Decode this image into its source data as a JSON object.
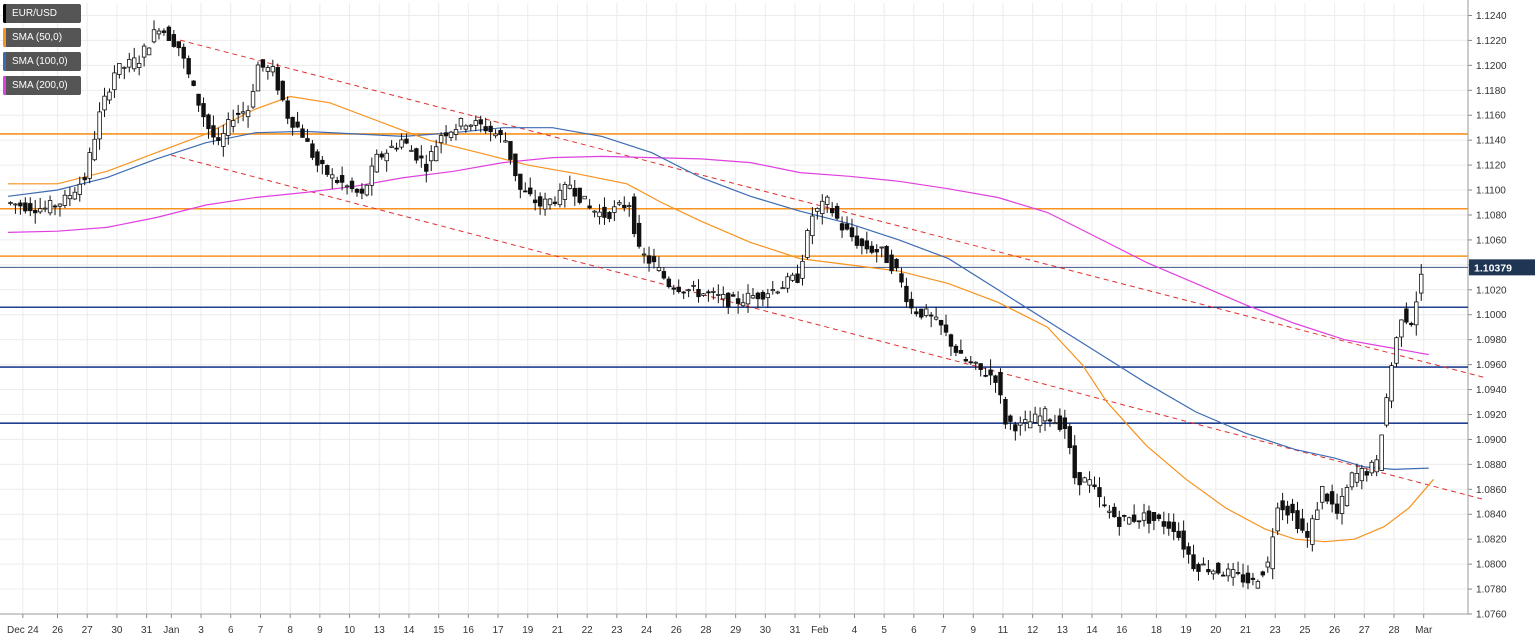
{
  "chart_data": {
    "type": "candlestick",
    "symbol": "EUR/USD",
    "last_price_label": "1.10379",
    "legend": [
      {
        "label": "EUR/USD",
        "color": "#000000"
      },
      {
        "label": "SMA (50,0)",
        "color": "#f7931e"
      },
      {
        "label": "SMA (100,0)",
        "color": "#3d6bb3"
      },
      {
        "label": "SMA (200,0)",
        "color": "#e040e0"
      }
    ],
    "ylim": [
      1.076,
      1.125
    ],
    "y_ticks": [
      "1.1240",
      "1.1220",
      "1.1200",
      "1.1180",
      "1.1160",
      "1.1140",
      "1.1120",
      "1.1100",
      "1.1080",
      "1.1060",
      "1.1040",
      "1.1020",
      "1.1000",
      "1.0980",
      "1.0960",
      "1.0940",
      "1.0920",
      "1.0900",
      "1.0880",
      "1.0860",
      "1.0840",
      "1.0820",
      "1.0800",
      "1.0780",
      "1.0760"
    ],
    "x_ticks": [
      {
        "label": "Dec 24",
        "i": 3
      },
      {
        "label": "26",
        "i": 10
      },
      {
        "label": "27",
        "i": 16
      },
      {
        "label": "30",
        "i": 22
      },
      {
        "label": "31",
        "i": 28
      },
      {
        "label": "Jan",
        "i": 33
      },
      {
        "label": "3",
        "i": 39
      },
      {
        "label": "6",
        "i": 45
      },
      {
        "label": "7",
        "i": 51
      },
      {
        "label": "8",
        "i": 57
      },
      {
        "label": "9",
        "i": 63
      },
      {
        "label": "10",
        "i": 69
      },
      {
        "label": "13",
        "i": 75
      },
      {
        "label": "14",
        "i": 81
      },
      {
        "label": "15",
        "i": 87
      },
      {
        "label": "16",
        "i": 93
      },
      {
        "label": "17",
        "i": 99
      },
      {
        "label": "19",
        "i": 105
      },
      {
        "label": "21",
        "i": 111
      },
      {
        "label": "22",
        "i": 117
      },
      {
        "label": "23",
        "i": 123
      },
      {
        "label": "24",
        "i": 129
      },
      {
        "label": "26",
        "i": 135
      },
      {
        "label": "28",
        "i": 141
      },
      {
        "label": "29",
        "i": 147
      },
      {
        "label": "30",
        "i": 153
      },
      {
        "label": "31",
        "i": 159
      },
      {
        "label": "Feb",
        "i": 164
      },
      {
        "label": "4",
        "i": 171
      },
      {
        "label": "5",
        "i": 177
      },
      {
        "label": "6",
        "i": 183
      },
      {
        "label": "7",
        "i": 189
      },
      {
        "label": "9",
        "i": 195
      },
      {
        "label": "11",
        "i": 201
      },
      {
        "label": "12",
        "i": 207
      },
      {
        "label": "13",
        "i": 213
      },
      {
        "label": "14",
        "i": 219
      },
      {
        "label": "16",
        "i": 225
      },
      {
        "label": "18",
        "i": 232
      },
      {
        "label": "19",
        "i": 238
      },
      {
        "label": "20",
        "i": 244
      },
      {
        "label": "21",
        "i": 250
      },
      {
        "label": "23",
        "i": 256
      },
      {
        "label": "25",
        "i": 262
      },
      {
        "label": "26",
        "i": 268
      },
      {
        "label": "27",
        "i": 274
      },
      {
        "label": "28",
        "i": 280
      },
      {
        "label": "Mar",
        "i": 286
      }
    ],
    "n_bars": 286,
    "anchors": [
      [
        0,
        1.109
      ],
      [
        8,
        1.1085
      ],
      [
        12,
        1.1092
      ],
      [
        16,
        1.111
      ],
      [
        19,
        1.116
      ],
      [
        22,
        1.1195
      ],
      [
        27,
        1.1205
      ],
      [
        31,
        1.1232
      ],
      [
        35,
        1.1215
      ],
      [
        38,
        1.118
      ],
      [
        41,
        1.115
      ],
      [
        43,
        1.1135
      ],
      [
        46,
        1.116
      ],
      [
        49,
        1.1165
      ],
      [
        51,
        1.12
      ],
      [
        54,
        1.1195
      ],
      [
        57,
        1.116
      ],
      [
        60,
        1.1145
      ],
      [
        63,
        1.112
      ],
      [
        66,
        1.111
      ],
      [
        70,
        1.11
      ],
      [
        72,
        1.1095
      ],
      [
        75,
        1.1125
      ],
      [
        80,
        1.114
      ],
      [
        85,
        1.112
      ],
      [
        88,
        1.1145
      ],
      [
        93,
        1.1155
      ],
      [
        97,
        1.115
      ],
      [
        101,
        1.114
      ],
      [
        104,
        1.11
      ],
      [
        108,
        1.1088
      ],
      [
        112,
        1.1095
      ],
      [
        114,
        1.1105
      ],
      [
        118,
        1.1085
      ],
      [
        121,
        1.108
      ],
      [
        126,
        1.109
      ],
      [
        128,
        1.105
      ],
      [
        131,
        1.104
      ],
      [
        134,
        1.1025
      ],
      [
        138,
        1.102
      ],
      [
        143,
        1.1015
      ],
      [
        147,
        1.101
      ],
      [
        151,
        1.1015
      ],
      [
        155,
        1.102
      ],
      [
        160,
        1.103
      ],
      [
        163,
        1.108
      ],
      [
        166,
        1.109
      ],
      [
        169,
        1.107
      ],
      [
        173,
        1.1055
      ],
      [
        177,
        1.105
      ],
      [
        180,
        1.1035
      ],
      [
        183,
        1.1005
      ],
      [
        186,
        1.1
      ],
      [
        189,
        1.099
      ],
      [
        193,
        1.0965
      ],
      [
        197,
        1.0955
      ],
      [
        200,
        1.095
      ],
      [
        202,
        1.0915
      ],
      [
        205,
        1.091
      ],
      [
        210,
        1.092
      ],
      [
        214,
        1.091
      ],
      [
        216,
        1.087
      ],
      [
        219,
        1.0865
      ],
      [
        222,
        1.0845
      ],
      [
        225,
        1.0835
      ],
      [
        230,
        1.0838
      ],
      [
        236,
        1.083
      ],
      [
        240,
        1.08
      ],
      [
        245,
        1.0795
      ],
      [
        249,
        1.079
      ],
      [
        252,
        1.0785
      ],
      [
        255,
        1.08
      ],
      [
        257,
        1.085
      ],
      [
        260,
        1.084
      ],
      [
        263,
        1.082
      ],
      [
        266,
        1.086
      ],
      [
        269,
        1.084
      ],
      [
        272,
        1.087
      ],
      [
        275,
        1.0875
      ],
      [
        277,
        1.088
      ],
      [
        280,
        1.096
      ],
      [
        282,
        1.1
      ],
      [
        284,
        1.0995
      ],
      [
        286,
        1.103
      ],
      [
        287,
        1.1038
      ]
    ],
    "sma50": [
      [
        0,
        1.1105
      ],
      [
        10,
        1.1105
      ],
      [
        20,
        1.1115
      ],
      [
        30,
        1.113
      ],
      [
        40,
        1.1145
      ],
      [
        50,
        1.1165
      ],
      [
        57,
        1.1175
      ],
      [
        65,
        1.117
      ],
      [
        75,
        1.1155
      ],
      [
        85,
        1.114
      ],
      [
        95,
        1.113
      ],
      [
        105,
        1.112
      ],
      [
        115,
        1.1113
      ],
      [
        125,
        1.1105
      ],
      [
        132,
        1.109
      ],
      [
        140,
        1.1075
      ],
      [
        150,
        1.1058
      ],
      [
        160,
        1.1045
      ],
      [
        170,
        1.104
      ],
      [
        180,
        1.1035
      ],
      [
        190,
        1.1025
      ],
      [
        200,
        1.101
      ],
      [
        210,
        1.099
      ],
      [
        217,
        1.096
      ],
      [
        222,
        1.093
      ],
      [
        230,
        1.0895
      ],
      [
        238,
        1.0868
      ],
      [
        246,
        1.0845
      ],
      [
        254,
        1.0828
      ],
      [
        260,
        1.082
      ],
      [
        266,
        1.0818
      ],
      [
        272,
        1.082
      ],
      [
        278,
        1.083
      ],
      [
        283,
        1.0845
      ],
      [
        288,
        1.0868
      ]
    ],
    "sma100": [
      [
        0,
        1.1095
      ],
      [
        10,
        1.11
      ],
      [
        20,
        1.111
      ],
      [
        30,
        1.1125
      ],
      [
        40,
        1.1138
      ],
      [
        50,
        1.1146
      ],
      [
        60,
        1.1147
      ],
      [
        70,
        1.1145
      ],
      [
        80,
        1.1143
      ],
      [
        90,
        1.1146
      ],
      [
        100,
        1.115
      ],
      [
        110,
        1.115
      ],
      [
        120,
        1.1143
      ],
      [
        130,
        1.113
      ],
      [
        140,
        1.111
      ],
      [
        150,
        1.1095
      ],
      [
        160,
        1.1083
      ],
      [
        170,
        1.1073
      ],
      [
        180,
        1.106
      ],
      [
        190,
        1.1045
      ],
      [
        200,
        1.102
      ],
      [
        210,
        1.0995
      ],
      [
        220,
        1.097
      ],
      [
        230,
        1.0945
      ],
      [
        240,
        1.0922
      ],
      [
        250,
        1.0905
      ],
      [
        260,
        1.0892
      ],
      [
        268,
        1.0885
      ],
      [
        274,
        1.0878
      ],
      [
        280,
        1.0876
      ],
      [
        287,
        1.0877
      ]
    ],
    "sma200": [
      [
        0,
        1.1066
      ],
      [
        10,
        1.1067
      ],
      [
        20,
        1.107
      ],
      [
        30,
        1.1078
      ],
      [
        40,
        1.1088
      ],
      [
        50,
        1.1094
      ],
      [
        60,
        1.1098
      ],
      [
        70,
        1.1103
      ],
      [
        80,
        1.111
      ],
      [
        90,
        1.1115
      ],
      [
        100,
        1.1122
      ],
      [
        110,
        1.1126
      ],
      [
        120,
        1.1127
      ],
      [
        130,
        1.1126
      ],
      [
        140,
        1.1125
      ],
      [
        150,
        1.1122
      ],
      [
        160,
        1.1114
      ],
      [
        170,
        1.1111
      ],
      [
        180,
        1.1107
      ],
      [
        190,
        1.1101
      ],
      [
        200,
        1.1094
      ],
      [
        210,
        1.1082
      ],
      [
        220,
        1.1062
      ],
      [
        230,
        1.1042
      ],
      [
        240,
        1.1025
      ],
      [
        250,
        1.1008
      ],
      [
        260,
        1.0993
      ],
      [
        270,
        1.098
      ],
      [
        280,
        1.0973
      ],
      [
        287,
        1.0968
      ]
    ],
    "horizontal_lines": [
      {
        "value": 1.1145,
        "color": "#f7931e"
      },
      {
        "value": 1.1085,
        "color": "#f7931e"
      },
      {
        "value": 1.1047,
        "color": "#f7931e"
      },
      {
        "value": 1.1038,
        "color": "#3d5a8a",
        "thin": true
      },
      {
        "value": 1.1006,
        "color": "#1f3f8f"
      },
      {
        "value": 1.0958,
        "color": "#1f3f8f"
      },
      {
        "value": 1.0913,
        "color": "#1f3f8f"
      }
    ],
    "trend_lines": [
      {
        "from": [
          33,
          1.1222
        ],
        "to": [
          298,
          1.095
        ]
      },
      {
        "from": [
          33,
          1.1128
        ],
        "to": [
          298,
          1.0852
        ]
      }
    ]
  }
}
